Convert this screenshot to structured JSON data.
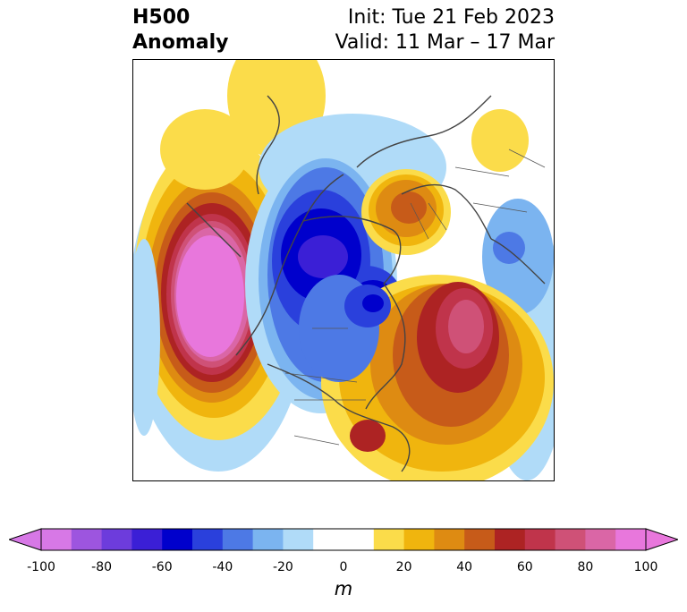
{
  "header": {
    "title_line1": "H500",
    "title_line2": "Anomaly",
    "init": "Init: Tue 21 Feb 2023",
    "valid": "Valid: 11 Mar – 17 Mar"
  },
  "map": {
    "projection": "north-polar-stereographic",
    "region": "Northern Hemisphere (North America, Arctic, Europe, Asia)",
    "field": "500 hPa geopotential height anomaly",
    "units": "m"
  },
  "colorbar": {
    "unit": "m",
    "min": -100,
    "max": 100,
    "ticks": [
      "-100",
      "-80",
      "-60",
      "-40",
      "-20",
      "0",
      "20",
      "40",
      "60",
      "80",
      "100"
    ],
    "extend": "both",
    "colors": [
      "#d778e6",
      "#9d55df",
      "#6d3cdc",
      "#3b1fd6",
      "#0000cc",
      "#2a40dc",
      "#4d79e5",
      "#7bb4f0",
      "#b0dbf8",
      "#ffffff",
      "#ffffff",
      "#fbdc4a",
      "#f0b50e",
      "#de8b12",
      "#c75b19",
      "#ad2323",
      "#c0344b",
      "#cf5177",
      "#da66a6",
      "#e877dc"
    ],
    "under_color": "#d778e6",
    "over_color": "#e877dc"
  }
}
